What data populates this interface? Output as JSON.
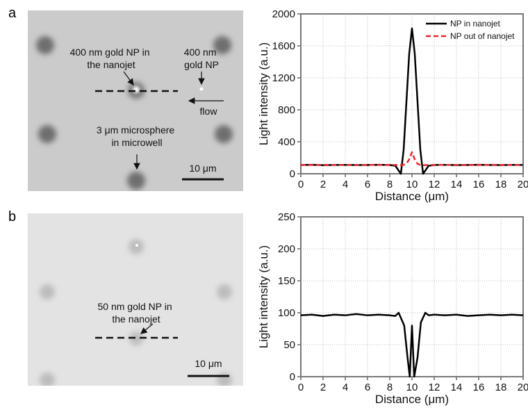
{
  "panels": [
    {
      "label": "a",
      "annotations": [
        {
          "lines": [
            "400 nm gold NP in",
            "the nanojet"
          ]
        },
        {
          "lines": [
            "400 nm",
            "gold NP"
          ]
        },
        {
          "lines": [
            "flow"
          ]
        },
        {
          "lines": [
            "3 μm microsphere",
            "in microwell"
          ]
        }
      ],
      "scale_bar": "10 μm"
    },
    {
      "label": "b",
      "annotations": [
        {
          "lines": [
            "50 nm gold NP in",
            "the nanojet"
          ]
        }
      ],
      "scale_bar": "10 μm"
    }
  ],
  "chart_data": [
    {
      "type": "line",
      "xlabel": "Distance (μm)",
      "ylabel": "Light intensity (a.u.)",
      "x": [
        0,
        1,
        2,
        3,
        4,
        5,
        6,
        7,
        8,
        8.5,
        9,
        9.25,
        9.5,
        9.75,
        10,
        10.25,
        10.5,
        10.75,
        11,
        11.5,
        12,
        13,
        14,
        15,
        16,
        17,
        18,
        19,
        20
      ],
      "series": [
        {
          "name": "NP in nanojet",
          "color": "#000000",
          "dash": "solid",
          "values": [
            110,
            112,
            108,
            110,
            111,
            109,
            110,
            112,
            110,
            100,
            0,
            300,
            900,
            1500,
            1820,
            1500,
            900,
            300,
            0,
            100,
            110,
            111,
            109,
            110,
            112,
            110,
            109,
            111,
            110
          ]
        },
        {
          "name": "NP out of nanojet",
          "color": "#e8262b",
          "dash": "dashed",
          "values": [
            110,
            110,
            111,
            110,
            109,
            110,
            111,
            110,
            110,
            110,
            108,
            112,
            125,
            180,
            270,
            180,
            125,
            110,
            106,
            110,
            110,
            111,
            110,
            109,
            110,
            111,
            110,
            110,
            110
          ]
        }
      ],
      "xlim": [
        0,
        20
      ],
      "xticks": [
        0,
        2,
        4,
        6,
        8,
        10,
        12,
        14,
        16,
        18,
        20
      ],
      "ylim": [
        0,
        2000
      ],
      "yticks": [
        0,
        400,
        800,
        1200,
        1600,
        2000
      ],
      "grid": true,
      "legend": "upper right"
    },
    {
      "type": "line",
      "xlabel": "Distance (μm)",
      "ylabel": "Light intensity (a.u.)",
      "x": [
        0,
        1,
        2,
        3,
        4,
        5,
        6,
        7,
        8,
        8.5,
        8.8,
        9,
        9.3,
        9.6,
        9.8,
        10,
        10.2,
        10.5,
        10.8,
        11.2,
        11.5,
        12,
        13,
        14,
        15,
        16,
        17,
        18,
        19,
        20
      ],
      "series": [
        {
          "color": "#000000",
          "dash": "solid",
          "values": [
            96,
            97,
            95,
            97,
            96,
            98,
            96,
            97,
            96,
            95,
            100,
            92,
            80,
            30,
            0,
            80,
            0,
            30,
            85,
            100,
            96,
            97,
            96,
            97,
            95,
            96,
            97,
            96,
            97,
            96
          ]
        }
      ],
      "xlim": [
        0,
        20
      ],
      "xticks": [
        0,
        2,
        4,
        6,
        8,
        10,
        12,
        14,
        16,
        18,
        20
      ],
      "ylim": [
        0,
        250
      ],
      "yticks": [
        0,
        50,
        100,
        150,
        200,
        250
      ],
      "grid": true
    }
  ]
}
